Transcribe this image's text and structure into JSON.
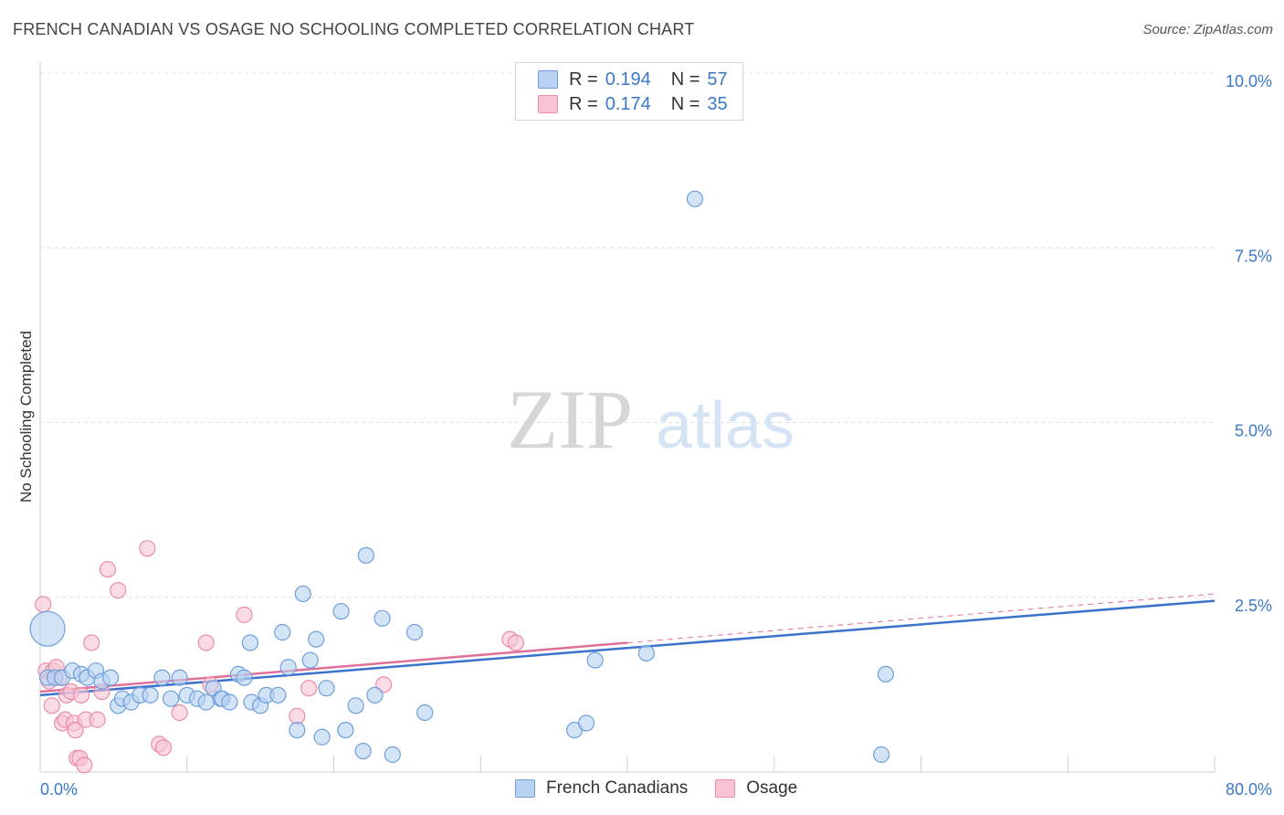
{
  "title": "FRENCH CANADIAN VS OSAGE NO SCHOOLING COMPLETED CORRELATION CHART",
  "source": "Source: ZipAtlas.com",
  "watermark": {
    "zip": "ZIP",
    "atlas": "atlas"
  },
  "legend": {
    "series1": {
      "r_label": "R =",
      "r_value": "0.194",
      "n_label": "N =",
      "n_value": "57"
    },
    "series2": {
      "r_label": "R =",
      "r_value": "0.174",
      "n_label": "N =",
      "n_value": "35"
    }
  },
  "bottom_legend": {
    "series1": "French Canadians",
    "series2": "Osage"
  },
  "colors": {
    "blue_fill": "#b8d2f2",
    "blue_stroke": "#6e9fdc",
    "blue_line": "#3a72cc",
    "pink_fill": "#f8c4d4",
    "pink_stroke": "#ea8ca8",
    "pink_line": "#e0709a",
    "axis_text": "#3b78c8",
    "grid": "#dddddd"
  },
  "chart_data": {
    "type": "scatter",
    "title": "FRENCH CANADIAN VS OSAGE NO SCHOOLING COMPLETED CORRELATION CHART",
    "xlabel": "",
    "ylabel": "No Schooling Completed",
    "xlim": [
      0,
      80
    ],
    "ylim": [
      0,
      10
    ],
    "x_tick_labels": [
      "0.0%",
      "80.0%"
    ],
    "y_ticks": [
      2.5,
      5.0,
      7.5,
      10.0
    ],
    "y_tick_labels": [
      "2.5%",
      "5.0%",
      "7.5%",
      "10.0%"
    ],
    "series": [
      {
        "name": "French Canadians",
        "r": 0.194,
        "n": 57,
        "trend": {
          "x0": 0,
          "y0": 1.1,
          "x1": 80,
          "y1": 2.45
        },
        "points": [
          [
            0.5,
            2.05
          ],
          [
            0.5,
            1.35
          ],
          [
            1.0,
            1.35
          ],
          [
            1.5,
            1.35
          ],
          [
            2.2,
            1.45
          ],
          [
            2.8,
            1.4
          ],
          [
            3.2,
            1.35
          ],
          [
            3.8,
            1.45
          ],
          [
            4.2,
            1.3
          ],
          [
            4.8,
            1.35
          ],
          [
            5.3,
            0.95
          ],
          [
            5.6,
            1.05
          ],
          [
            6.2,
            1.0
          ],
          [
            6.8,
            1.1
          ],
          [
            7.5,
            1.1
          ],
          [
            8.3,
            1.35
          ],
          [
            8.9,
            1.05
          ],
          [
            9.5,
            1.35
          ],
          [
            10.0,
            1.1
          ],
          [
            10.7,
            1.05
          ],
          [
            11.3,
            1.0
          ],
          [
            11.8,
            1.2
          ],
          [
            12.3,
            1.05
          ],
          [
            12.4,
            1.05
          ],
          [
            12.9,
            1.0
          ],
          [
            13.5,
            1.4
          ],
          [
            13.9,
            1.35
          ],
          [
            14.4,
            1.0
          ],
          [
            14.3,
            1.85
          ],
          [
            15.0,
            0.95
          ],
          [
            15.4,
            1.1
          ],
          [
            16.2,
            1.1
          ],
          [
            16.5,
            2.0
          ],
          [
            16.9,
            1.5
          ],
          [
            17.5,
            0.6
          ],
          [
            17.9,
            2.55
          ],
          [
            18.4,
            1.6
          ],
          [
            18.8,
            1.9
          ],
          [
            19.2,
            0.5
          ],
          [
            19.5,
            1.2
          ],
          [
            20.5,
            2.3
          ],
          [
            20.8,
            0.6
          ],
          [
            21.5,
            0.95
          ],
          [
            22.0,
            0.3
          ],
          [
            22.2,
            3.1
          ],
          [
            22.8,
            1.1
          ],
          [
            23.3,
            2.2
          ],
          [
            24.0,
            0.25
          ],
          [
            25.5,
            2.0
          ],
          [
            26.2,
            0.85
          ],
          [
            36.4,
            0.6
          ],
          [
            37.2,
            0.7
          ],
          [
            37.8,
            1.6
          ],
          [
            41.3,
            1.7
          ],
          [
            44.6,
            8.2
          ],
          [
            57.6,
            1.4
          ],
          [
            57.3,
            0.25
          ]
        ]
      },
      {
        "name": "Osage",
        "r": 0.174,
        "n": 35,
        "trend": {
          "x0": 0,
          "y0": 1.15,
          "x1": 40,
          "y1": 1.85
        },
        "trend_extension": {
          "x0": 40,
          "y0": 1.85,
          "x1": 80,
          "y1": 2.55
        },
        "points": [
          [
            0.2,
            2.4
          ],
          [
            0.4,
            1.45
          ],
          [
            0.6,
            1.3
          ],
          [
            0.8,
            0.95
          ],
          [
            0.9,
            1.45
          ],
          [
            1.1,
            1.5
          ],
          [
            1.3,
            1.35
          ],
          [
            1.5,
            0.7
          ],
          [
            1.7,
            0.75
          ],
          [
            1.8,
            1.1
          ],
          [
            2.1,
            1.15
          ],
          [
            2.3,
            0.7
          ],
          [
            2.4,
            0.6
          ],
          [
            2.5,
            0.2
          ],
          [
            2.7,
            0.2
          ],
          [
            2.8,
            1.1
          ],
          [
            3.0,
            0.1
          ],
          [
            3.1,
            0.75
          ],
          [
            3.5,
            1.85
          ],
          [
            3.9,
            0.75
          ],
          [
            4.2,
            1.15
          ],
          [
            4.6,
            2.9
          ],
          [
            5.3,
            2.6
          ],
          [
            7.3,
            3.2
          ],
          [
            8.1,
            0.4
          ],
          [
            8.4,
            0.35
          ],
          [
            9.5,
            0.85
          ],
          [
            11.3,
            1.85
          ],
          [
            11.6,
            1.25
          ],
          [
            13.9,
            2.25
          ],
          [
            17.5,
            0.8
          ],
          [
            18.3,
            1.2
          ],
          [
            23.4,
            1.25
          ],
          [
            32.0,
            1.9
          ],
          [
            32.4,
            1.85
          ]
        ]
      }
    ]
  }
}
